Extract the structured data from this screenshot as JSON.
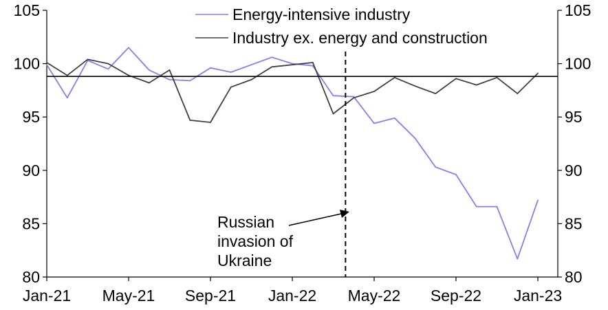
{
  "chart_data": {
    "type": "line",
    "x": [
      "Jan-21",
      "Feb-21",
      "Mar-21",
      "Apr-21",
      "May-21",
      "Jun-21",
      "Jul-21",
      "Aug-21",
      "Sep-21",
      "Oct-21",
      "Nov-21",
      "Dec-21",
      "Jan-22",
      "Feb-22",
      "Mar-22",
      "Apr-22",
      "May-22",
      "Jun-22",
      "Jul-22",
      "Aug-22",
      "Sep-22",
      "Oct-22",
      "Nov-22",
      "Dec-22",
      "Jan-23"
    ],
    "x_tick_labels": [
      "Jan-21",
      "May-21",
      "Sep-21",
      "Jan-22",
      "May-22",
      "Sep-22",
      "Jan-23"
    ],
    "x_tick_indices": [
      0,
      4,
      8,
      12,
      16,
      20,
      24
    ],
    "series": [
      {
        "name": "Energy-intensive industry",
        "color": "#8080ee",
        "values": [
          99.9,
          96.8,
          100.3,
          99.5,
          101.5,
          99.4,
          98.5,
          98.4,
          99.6,
          99.2,
          99.9,
          100.6,
          100.0,
          99.8,
          97.0,
          96.9,
          94.4,
          94.9,
          93.0,
          90.3,
          89.6,
          86.6,
          86.6,
          81.7,
          87.2
        ]
      },
      {
        "name": "Industry ex. energy and construction",
        "color": "#404040",
        "values": [
          100.1,
          98.9,
          100.4,
          100.0,
          98.9,
          98.2,
          99.4,
          94.7,
          94.5,
          97.8,
          98.5,
          99.7,
          99.9,
          100.1,
          95.3,
          96.8,
          97.4,
          98.7,
          97.9,
          97.2,
          98.6,
          98.0,
          98.7,
          97.2,
          99.1
        ]
      }
    ],
    "reference_line": {
      "value": 98.8,
      "color": "#000000"
    },
    "event_line": {
      "x_index": 14.6,
      "label_lines": [
        "Russian",
        "invasion of",
        "Ukraine"
      ],
      "style": "dashed"
    },
    "ylim": [
      80,
      105
    ],
    "y_ticks": [
      80,
      85,
      90,
      95,
      100,
      105
    ],
    "y_ticks_left": [
      "80",
      "85",
      "90",
      "95",
      "100",
      "105"
    ],
    "y_ticks_right": [
      "80",
      "85",
      "90",
      "95",
      "100",
      "105"
    ],
    "title": "",
    "xlabel": "",
    "ylabel": "",
    "legend_position": "top-center",
    "grid": false
  }
}
